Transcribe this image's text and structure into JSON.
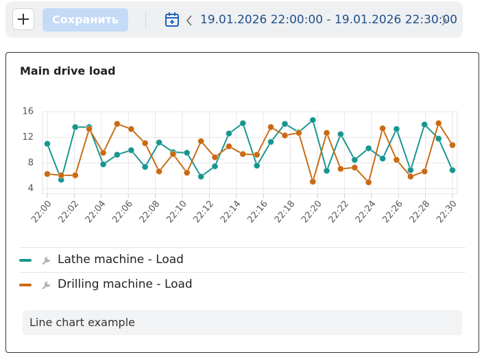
{
  "toolbar": {
    "save": "Сохранить",
    "range": "19.01.2026 22:00:00 - 19.01.2026 22:30:00"
  },
  "chart_data": {
    "type": "line",
    "title": "Main drive load",
    "x": [
      0,
      1.03,
      2.07,
      3.1,
      4.14,
      5.17,
      6.21,
      7.24,
      8.28,
      9.31,
      10.34,
      11.38,
      12.41,
      13.45,
      14.48,
      15.52,
      16.55,
      17.59,
      18.62,
      19.66,
      20.69,
      21.72,
      22.76,
      23.79,
      24.83,
      25.86,
      26.9,
      27.93,
      28.97,
      30
    ],
    "xlim": [
      0,
      30
    ],
    "xticks": [
      {
        "value": 0,
        "label": "22:00"
      },
      {
        "value": 2,
        "label": "22:02"
      },
      {
        "value": 4,
        "label": "22:04"
      },
      {
        "value": 6,
        "label": "22:06"
      },
      {
        "value": 8,
        "label": "22:08"
      },
      {
        "value": 10,
        "label": "22:10"
      },
      {
        "value": 12,
        "label": "22:12"
      },
      {
        "value": 14,
        "label": "22:14"
      },
      {
        "value": 16,
        "label": "22:16"
      },
      {
        "value": 18,
        "label": "22:18"
      },
      {
        "value": 20,
        "label": "22:20"
      },
      {
        "value": 22,
        "label": "22:22"
      },
      {
        "value": 24,
        "label": "22:24"
      },
      {
        "value": 26,
        "label": "22:26"
      },
      {
        "value": 28,
        "label": "22:28"
      },
      {
        "value": 30,
        "label": "22:30"
      }
    ],
    "ylim": [
      3.2,
      16
    ],
    "yticks": [
      4,
      8,
      12,
      16
    ],
    "grid": true,
    "series": [
      {
        "name": "Lathe machine - Load",
        "color": "#17968f",
        "values": [
          11.0,
          5.4,
          13.6,
          13.6,
          7.8,
          9.3,
          10.0,
          7.4,
          11.2,
          9.7,
          9.6,
          5.9,
          7.5,
          12.6,
          14.2,
          7.6,
          11.3,
          14.1,
          12.8,
          14.7,
          6.8,
          12.5,
          8.5,
          10.3,
          8.7,
          13.3,
          6.9,
          14.0,
          11.8,
          6.9
        ]
      },
      {
        "name": "Drilling machine - Load",
        "color": "#c96a12",
        "values": [
          6.3,
          6.1,
          6.1,
          13.3,
          9.6,
          14.1,
          13.3,
          11.1,
          6.7,
          9.4,
          6.5,
          11.4,
          8.9,
          10.6,
          9.4,
          9.3,
          13.6,
          12.3,
          12.7,
          5.1,
          12.7,
          7.1,
          7.3,
          5.0,
          13.4,
          8.5,
          5.9,
          6.7,
          14.2,
          10.8
        ]
      }
    ]
  },
  "caption": "Line chart example"
}
